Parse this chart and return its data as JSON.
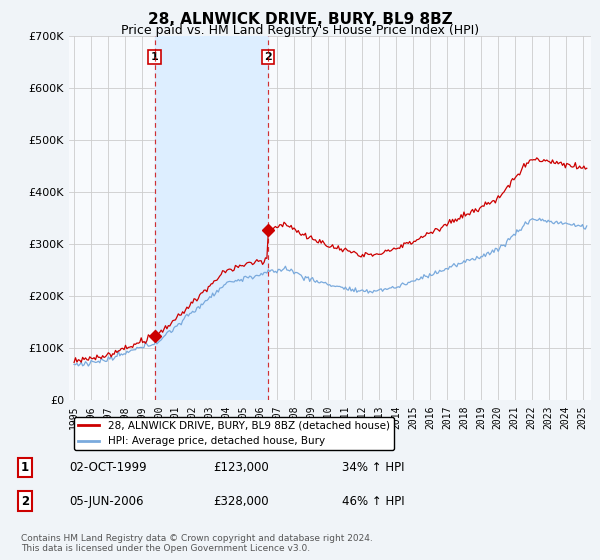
{
  "title": "28, ALNWICK DRIVE, BURY, BL9 8BZ",
  "subtitle": "Price paid vs. HM Land Registry's House Price Index (HPI)",
  "legend_line1": "28, ALNWICK DRIVE, BURY, BL9 8BZ (detached house)",
  "legend_line2": "HPI: Average price, detached house, Bury",
  "footer": "Contains HM Land Registry data © Crown copyright and database right 2024.\nThis data is licensed under the Open Government Licence v3.0.",
  "sale1": {
    "date": "02-OCT-1999",
    "price": 123000,
    "hpi_pct": "34% ↑ HPI",
    "label": "1",
    "year": 1999.75
  },
  "sale2": {
    "date": "05-JUN-2006",
    "price": 328000,
    "hpi_pct": "46% ↑ HPI",
    "label": "2",
    "year": 2006.42
  },
  "red_color": "#cc0000",
  "blue_color": "#7aaadd",
  "shade_color": "#ddeeff",
  "background_color": "#f0f4f8",
  "plot_bg_color": "#f8fafd",
  "grid_color": "#cccccc",
  "ylim": [
    0,
    700000
  ],
  "ytick_max": 700000,
  "xlim_start": 1994.7,
  "xlim_end": 2025.5,
  "title_fontsize": 11,
  "subtitle_fontsize": 9
}
